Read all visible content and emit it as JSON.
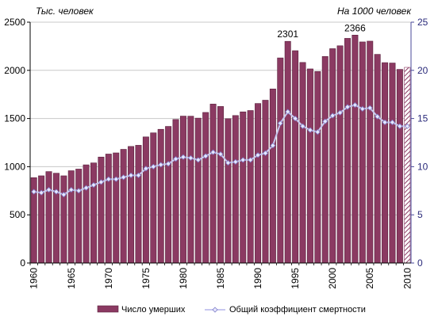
{
  "chart_data": {
    "type": "bar",
    "left_axis_label": "Тыс. человек",
    "right_axis_label": "На 1000 человек",
    "ylim_left": [
      0,
      2500
    ],
    "ylim_right": [
      0,
      25
    ],
    "yticks_left": [
      "0",
      "500",
      "1000",
      "1500",
      "2000",
      "2500"
    ],
    "yticks_right": [
      "0",
      "5",
      "10",
      "15",
      "20",
      "25"
    ],
    "x": [
      1960,
      1961,
      1962,
      1963,
      1964,
      1965,
      1966,
      1967,
      1968,
      1969,
      1970,
      1971,
      1972,
      1973,
      1974,
      1975,
      1976,
      1977,
      1978,
      1979,
      1980,
      1981,
      1982,
      1983,
      1984,
      1985,
      1986,
      1987,
      1988,
      1989,
      1990,
      1991,
      1992,
      1993,
      1994,
      1995,
      1996,
      1997,
      1998,
      1999,
      2000,
      2001,
      2002,
      2003,
      2004,
      2005,
      2006,
      2007,
      2008,
      2009,
      2010
    ],
    "xticks": [
      "1960",
      "1965",
      "1970",
      "1975",
      "1980",
      "1985",
      "1990",
      "1995",
      "2000",
      "2005",
      "2010"
    ],
    "series": [
      {
        "name": "Число умерших",
        "type": "bar",
        "color": "#8b3a62",
        "values": [
          886,
          905,
          949,
          932,
          905,
          958,
          975,
          1019,
          1039,
          1100,
          1131,
          1143,
          1180,
          1210,
          1222,
          1309,
          1351,
          1388,
          1418,
          1490,
          1525,
          1524,
          1504,
          1563,
          1650,
          1625,
          1498,
          1531,
          1569,
          1583,
          1656,
          1690,
          1807,
          2129,
          2301,
          2204,
          2082,
          2015,
          1988,
          2144,
          2225,
          2255,
          2332,
          2366,
          2295,
          2303,
          2166,
          2080,
          2076,
          2010,
          2031
        ],
        "hatched_last_index": 50
      },
      {
        "name": "Общий коэффициент смертности",
        "type": "line",
        "axis": "right",
        "color": "#c8c8f0",
        "values": [
          7.4,
          7.3,
          7.6,
          7.4,
          7.1,
          7.6,
          7.5,
          7.8,
          8.1,
          8.4,
          8.7,
          8.7,
          8.9,
          9.1,
          9.1,
          9.8,
          10.0,
          10.2,
          10.3,
          10.8,
          11.0,
          10.9,
          10.7,
          11.1,
          11.5,
          11.3,
          10.4,
          10.5,
          10.7,
          10.7,
          11.2,
          11.4,
          12.2,
          14.5,
          15.7,
          15.0,
          14.2,
          13.8,
          13.6,
          14.7,
          15.3,
          15.6,
          16.2,
          16.4,
          16.0,
          16.1,
          15.2,
          14.6,
          14.6,
          14.2,
          14.2
        ]
      }
    ],
    "annotations": [
      {
        "year": 1994,
        "text": "2301"
      },
      {
        "year": 2003,
        "text": "2366"
      }
    ],
    "legend_position": "bottom"
  }
}
